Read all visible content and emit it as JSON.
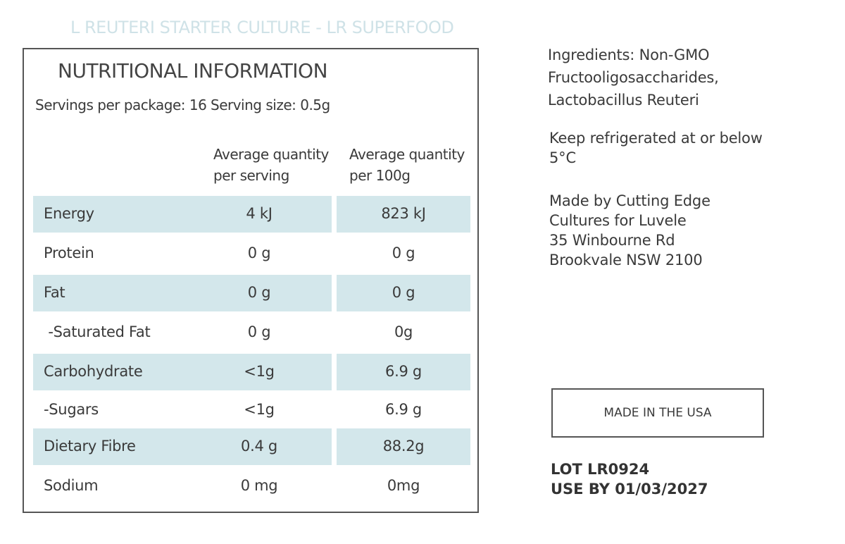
{
  "product_title": "L REUTERI STARTER CULTURE - LR SUPERFOOD",
  "panel": {
    "heading": "NUTRITIONAL INFORMATION",
    "servings_per_package": "Servings per package: 16",
    "serving_size": "Serving size: 0.5g",
    "column_headers": [
      [
        "Average quantity",
        "per serving"
      ],
      [
        "Average quantity",
        "per 100g"
      ]
    ],
    "rows": [
      [
        "Energy",
        "4 kJ",
        "823 kJ"
      ],
      [
        "Protein",
        "0 g",
        "0 g"
      ],
      [
        "Fat",
        "0 g",
        "0 g"
      ],
      [
        " -Saturated Fat",
        "0 g",
        "0g"
      ],
      [
        "Carbohydrate",
        "<1g",
        "6.9 g"
      ],
      [
        "-Sugars",
        "<1g",
        "6.9 g"
      ],
      [
        "Dietary Fibre",
        "0.4 g",
        "88.2g"
      ],
      [
        "Sodium",
        "0 mg",
        "0mg"
      ]
    ]
  },
  "ingredients": [
    "Ingredients: Non-GMO",
    "Fructooligosaccharides,",
    "Lactobacillus Reuteri"
  ],
  "storage": [
    "Keep refrigerated at or below",
    "5°C"
  ],
  "maker": [
    "Made by Cutting Edge",
    "Cultures for Luvele",
    "35 Winbourne Rd",
    "Brookvale NSW 2100"
  ],
  "origin": "MADE IN THE USA",
  "lot": "LOT LR0924",
  "use_by": "USE BY 01/03/2027"
}
